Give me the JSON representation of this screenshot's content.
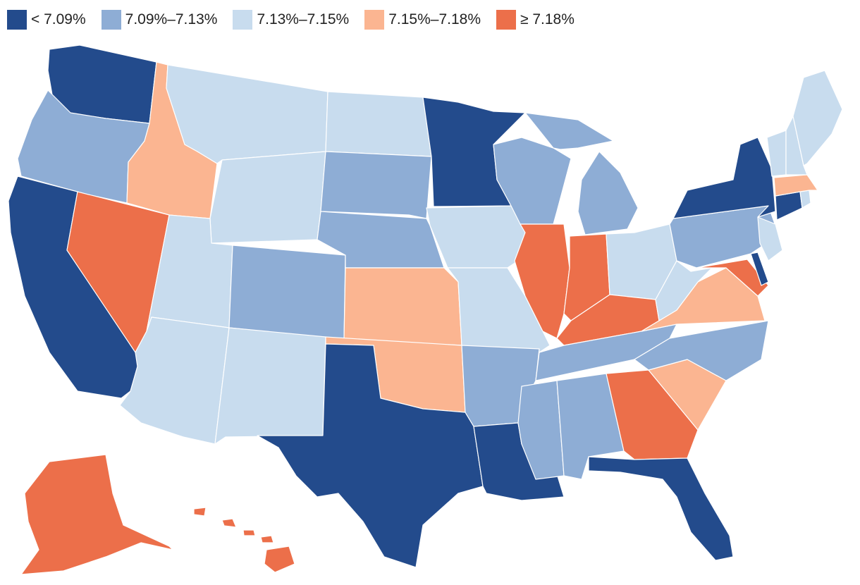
{
  "chart_data": {
    "type": "choropleth",
    "title": "",
    "legend": {
      "placement": "top-left",
      "bins": [
        {
          "id": "b1",
          "label": "< 7.09%",
          "color": "#234b8c"
        },
        {
          "id": "b2",
          "label": "7.09%–7.13%",
          "color": "#8eadd5"
        },
        {
          "id": "b3",
          "label": "7.13%–7.15%",
          "color": "#c8dcee"
        },
        {
          "id": "b4",
          "label": "7.15%–7.18%",
          "color": "#fbb591"
        },
        {
          "id": "b5",
          "label": "≥ 7.18%",
          "color": "#ec6f4a"
        }
      ]
    },
    "states": {
      "WA": "b1",
      "OR": "b2",
      "CA": "b1",
      "ID": "b4",
      "NV": "b5",
      "MT": "b3",
      "WY": "b3",
      "UT": "b3",
      "AZ": "b3",
      "CO": "b2",
      "NM": "b3",
      "ND": "b3",
      "SD": "b2",
      "NE": "b2",
      "KS": "b4",
      "OK": "b4",
      "TX": "b1",
      "MN": "b1",
      "IA": "b3",
      "MO": "b3",
      "AR": "b2",
      "LA": "b1",
      "WI": "b2",
      "IL": "b5",
      "MI": "b2",
      "IN": "b5",
      "OH": "b3",
      "KY": "b5",
      "TN": "b2",
      "MS": "b2",
      "AL": "b2",
      "GA": "b5",
      "FL": "b1",
      "SC": "b4",
      "NC": "b2",
      "VA": "b4",
      "WV": "b3",
      "MD": "b5",
      "DE": "b1",
      "PA": "b2",
      "NJ": "b3",
      "NY": "b1",
      "CT": "b1",
      "RI": "b3",
      "MA": "b4",
      "VT": "b3",
      "NH": "b3",
      "ME": "b3",
      "AK": "b5",
      "HI": "b5"
    }
  }
}
